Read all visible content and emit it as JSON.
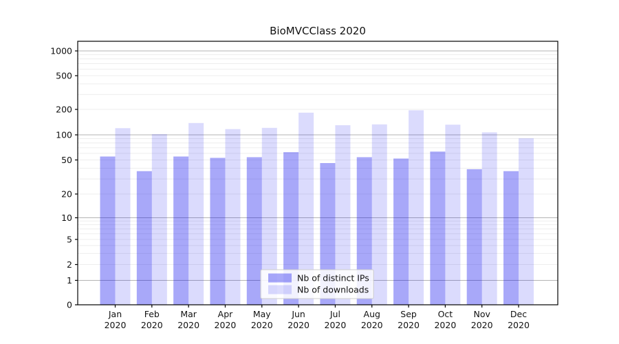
{
  "chart_data": {
    "type": "bar",
    "title": "BioMVCClass 2020",
    "scale": "symlog",
    "categories": [
      "Jan",
      "Feb",
      "Mar",
      "Apr",
      "May",
      "Jun",
      "Jul",
      "Aug",
      "Sep",
      "Oct",
      "Nov",
      "Dec"
    ],
    "category_year": "2020",
    "series": [
      {
        "name": "Nb of distinct IPs",
        "fill": "#0000ee",
        "opacity": 0.34,
        "values": [
          55,
          37,
          55,
          53,
          54,
          62,
          46,
          54,
          52,
          63,
          39,
          37
        ]
      },
      {
        "name": "Nb of downloads",
        "fill": "#0000ee",
        "opacity": 0.14,
        "values": [
          120,
          102,
          138,
          117,
          121,
          183,
          130,
          133,
          195,
          132,
          107,
          91
        ]
      }
    ],
    "yticks": [
      0,
      1,
      2,
      5,
      10,
      20,
      50,
      100,
      200,
      500,
      1000
    ],
    "ylim": [
      0,
      1000
    ],
    "grid": true,
    "legend_position": "lower center",
    "colors": {
      "grid_major": "#b3b3b3",
      "grid_minor": "#ededed",
      "axis": "#000000",
      "legend_border": "#cccccc",
      "text": "#111111"
    }
  }
}
